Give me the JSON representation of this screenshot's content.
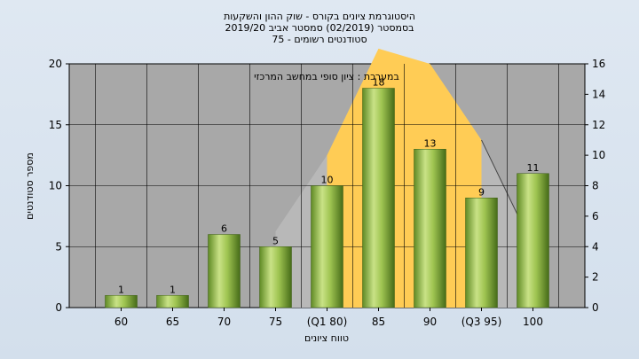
{
  "chart_data": {
    "type": "bar",
    "title_lines": [
      "היסטוגרמת ציונים בקורס - שוק ההון והשקעות",
      "בסמסטר  (02/2019)  סמסטר אביב 2019/20",
      "סטודנטים רשומים - 75"
    ],
    "annotation": "במערכת : ציון סופי במחשב המרכזי",
    "xlabel": "טווח ציונים",
    "ylabel": "מספר סטודנטים",
    "categories": [
      "60",
      "65",
      "70",
      "75",
      "(Q1 80)",
      "85",
      "90",
      "(Q3 95)",
      "100"
    ],
    "values": [
      1,
      1,
      6,
      5,
      10,
      18,
      13,
      9,
      11
    ],
    "data_labels": [
      "1",
      "1",
      "6",
      "5",
      "10",
      "18",
      "13",
      "9",
      "11"
    ],
    "ylim": [
      0,
      20
    ],
    "yticks": [
      0,
      5,
      10,
      15,
      20
    ],
    "y2lim": [
      0,
      16
    ],
    "y2ticks": [
      0,
      2,
      4,
      6,
      8,
      10,
      12,
      14,
      16
    ],
    "overlay_area": {
      "left_gray": [
        {
          "x": 3,
          "y": 5
        },
        {
          "x": 4,
          "y": 10
        }
      ],
      "yellow": [
        {
          "x": 4,
          "y": 10
        },
        {
          "x": 5,
          "y": 17
        },
        {
          "x": 6,
          "y": 16
        },
        {
          "x": 7,
          "y": 11
        }
      ],
      "right_gray": [
        {
          "x": 7,
          "y": 11
        },
        {
          "x": 8,
          "y": 4
        }
      ]
    },
    "grid": true,
    "colors": {
      "bar_light": "#c6e07e",
      "bar_dark": "#4f7a1c",
      "overlay_yellow": "#ffcc55",
      "overlay_gray": "#b8b8b8",
      "plot_bg": "#a8a8a8",
      "grid": "#000000"
    }
  }
}
